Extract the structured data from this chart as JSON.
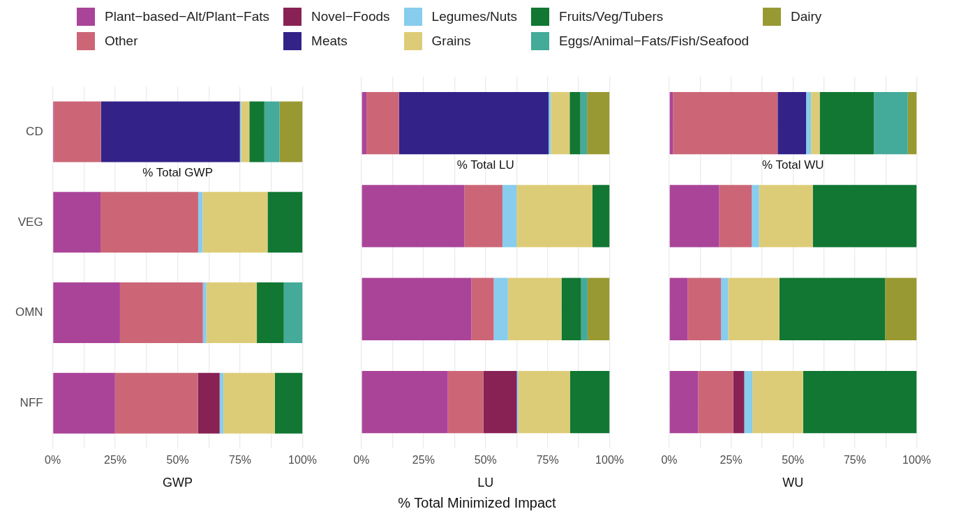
{
  "chart_data": [
    {
      "type": "bar",
      "orientation": "horizontal",
      "stacked": true,
      "xlabel": "GWP",
      "categories": [
        "CD",
        "VEG",
        "OMN",
        "NFF"
      ],
      "legend": "top",
      "grid": true,
      "annotations": [
        "% Total GWP"
      ],
      "xlim": [
        0,
        100
      ],
      "xticks": [
        {
          "value": 0,
          "label": "0%"
        },
        {
          "value": 12.5,
          "label": null
        },
        {
          "value": 25,
          "label": "25%"
        },
        {
          "value": 37.5,
          "label": null
        },
        {
          "value": 50,
          "label": "50%"
        },
        {
          "value": 62.5,
          "label": null
        },
        {
          "value": 75,
          "label": "75%"
        },
        {
          "value": 87.5,
          "label": null
        },
        {
          "value": 100,
          "label": "100%"
        }
      ],
      "series": [
        {
          "name": "Plant−based−Alt/Plant−Fats",
          "color": "#aa4499",
          "values": [
            0.4,
            19.1,
            26.9,
            24.9
          ]
        },
        {
          "name": "Other",
          "color": "#cc6677",
          "values": [
            18.9,
            39.1,
            33.2,
            33.2
          ]
        },
        {
          "name": "Novel−Foods",
          "color": "#882255",
          "values": [
            null,
            null,
            null,
            8.7
          ]
        },
        {
          "name": "Meats",
          "color": "#332288",
          "values": [
            55.6,
            null,
            null,
            null
          ]
        },
        {
          "name": "Legumes/Nuts",
          "color": "#88ccee",
          "values": [
            0.5,
            1.8,
            1.4,
            1.5
          ]
        },
        {
          "name": "Grains",
          "color": "#ddcc77",
          "values": [
            3.3,
            26.0,
            20.2,
            20.6
          ]
        },
        {
          "name": "Fruits/Veg/Tubers",
          "color": "#117733",
          "values": [
            6.0,
            14.0,
            10.8,
            11.1
          ]
        },
        {
          "name": "Eggs/Animal−Fats/Fish/Seafood",
          "color": "#44aa99",
          "values": [
            6.1,
            null,
            7.5,
            null
          ]
        },
        {
          "name": "Dairy",
          "color": "#999933",
          "values": [
            9.2,
            null,
            null,
            null
          ]
        }
      ]
    },
    {
      "type": "bar",
      "orientation": "horizontal",
      "stacked": true,
      "xlabel": "LU",
      "categories": [
        null,
        null,
        null,
        null
      ],
      "grid": true,
      "tick_labels": "x",
      "annotations": [
        "% Total LU",
        "% Total Minimized Impact"
      ],
      "xlim": [
        0,
        100
      ],
      "xticks": [
        {
          "value": 0,
          "label": "0%"
        },
        {
          "value": 12.5,
          "label": null
        },
        {
          "value": 25,
          "label": "25%"
        },
        {
          "value": 37.5,
          "label": null
        },
        {
          "value": 50,
          "label": "50%"
        },
        {
          "value": 62.5,
          "label": null
        },
        {
          "value": 75,
          "label": "75%"
        },
        {
          "value": 87.5,
          "label": null
        },
        {
          "value": 100,
          "label": "100%"
        }
      ],
      "series": [
        {
          "color": "#aa4499",
          "values": [
            2.0,
            41.5,
            44.3,
            34.8
          ]
        },
        {
          "color": "#cc6677",
          "values": [
            13.1,
            15.3,
            9.0,
            14.3
          ]
        },
        {
          "color": "#882255",
          "values": [
            null,
            null,
            null,
            13.5
          ]
        },
        {
          "color": "#332288",
          "values": [
            60.3,
            null,
            null,
            null
          ]
        },
        {
          "color": "#88ccee",
          "values": [
            0.9,
            5.7,
            5.7,
            0.6
          ]
        },
        {
          "color": "#ddcc77",
          "values": [
            7.6,
            30.6,
            21.6,
            20.9
          ]
        },
        {
          "color": "#117733",
          "values": [
            4.3,
            6.9,
            7.9,
            15.9
          ]
        },
        {
          "color": "#44aa99",
          "values": [
            2.7,
            null,
            2.6,
            null
          ]
        },
        {
          "color": "#999933",
          "values": [
            9.1,
            null,
            8.9,
            null
          ]
        }
      ]
    },
    {
      "type": "bar",
      "orientation": "horizontal",
      "stacked": true,
      "xlabel": "WU",
      "categories": [
        null,
        null,
        null,
        null
      ],
      "grid": true,
      "tick_labels": "x",
      "annotations": [
        "% Total WU"
      ],
      "xlim": [
        0,
        100
      ],
      "xticks": [
        {
          "value": 0,
          "label": "0%"
        },
        {
          "value": 12.5,
          "label": null
        },
        {
          "value": 25,
          "label": "25%"
        },
        {
          "value": 37.5,
          "label": null
        },
        {
          "value": 50,
          "label": "50%"
        },
        {
          "value": 62.5,
          "label": null
        },
        {
          "value": 75,
          "label": "75%"
        },
        {
          "value": 87.5,
          "label": null
        },
        {
          "value": 100,
          "label": "100%"
        }
      ],
      "series": [
        {
          "color": "#aa4499",
          "values": [
            1.5,
            20.2,
            7.4,
            11.7
          ]
        },
        {
          "color": "#cc6677",
          "values": [
            42.3,
            13.1,
            13.5,
            14.2
          ]
        },
        {
          "color": "#882255",
          "values": [
            null,
            null,
            null,
            4.4
          ]
        },
        {
          "color": "#332288",
          "values": [
            11.5,
            null,
            null,
            null
          ]
        },
        {
          "color": "#88ccee",
          "values": [
            2.0,
            3.0,
            2.9,
            3.3
          ]
        },
        {
          "color": "#ddcc77",
          "values": [
            3.5,
            21.7,
            20.7,
            20.5
          ]
        },
        {
          "color": "#117733",
          "values": [
            21.9,
            42.0,
            42.7,
            45.9
          ]
        },
        {
          "color": "#44aa99",
          "values": [
            13.7,
            null,
            null,
            null
          ]
        },
        {
          "color": "#999933",
          "values": [
            3.6,
            null,
            12.8,
            null
          ]
        }
      ]
    }
  ]
}
